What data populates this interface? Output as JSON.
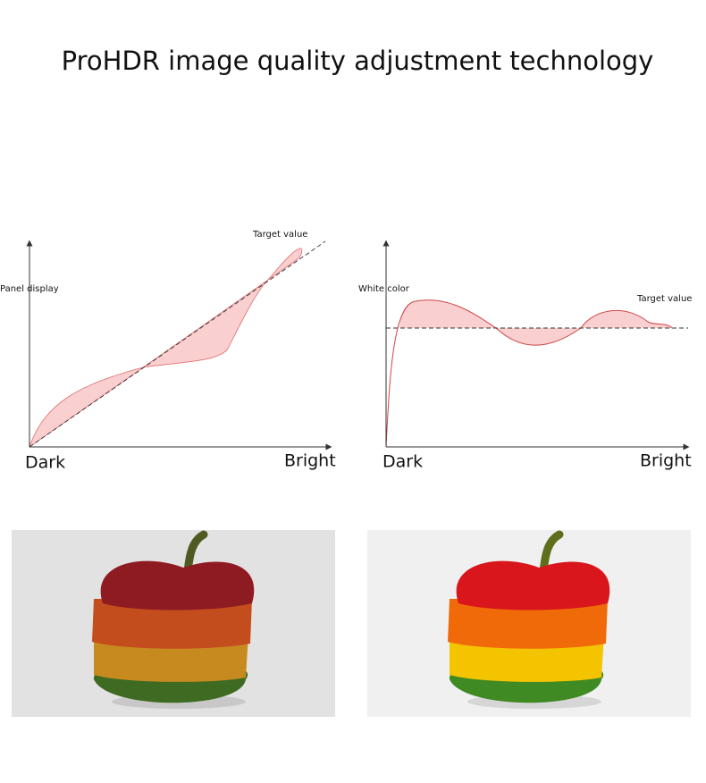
{
  "header": {
    "title": "ProHDR image quality adjustment technology"
  },
  "diagrams": [
    {
      "y_label": "Panel display",
      "target_label": "Target value",
      "x_start": "Dark",
      "x_end": "Bright"
    },
    {
      "y_label": "White color",
      "target_label": "Target value",
      "x_start": "Dark",
      "x_end": "Bright"
    }
  ]
}
